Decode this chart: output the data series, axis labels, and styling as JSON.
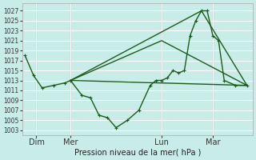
{
  "title": "Pression niveau de la mer( hPa )",
  "bg_color": "#c8ece8",
  "plot_bg": "#c8ece8",
  "grid_color": "#ffffff",
  "line_color": "#1a5c1a",
  "vline_color": "#336633",
  "ylim": [
    1002,
    1028.5
  ],
  "xlim": [
    -0.5,
    40
  ],
  "yticks": [
    1003,
    1005,
    1007,
    1009,
    1011,
    1013,
    1015,
    1017,
    1019,
    1021,
    1023,
    1025,
    1027
  ],
  "day_labels": [
    "Dim",
    "Mer",
    "Lun",
    "Mar"
  ],
  "day_positions": [
    2,
    8,
    24,
    33
  ],
  "line1_x": [
    0,
    1.5,
    3,
    5,
    7,
    8,
    10,
    11.5,
    13,
    14.5,
    16,
    18,
    20,
    22,
    23,
    24,
    25,
    26,
    27,
    28,
    29,
    30,
    31,
    32,
    33,
    34,
    35,
    37,
    39
  ],
  "line1_y": [
    1018,
    1014,
    1011.5,
    1012,
    1012.5,
    1013,
    1010,
    1009.5,
    1006,
    1005.5,
    1003.5,
    1005,
    1007,
    1012,
    1013,
    1013,
    1013.5,
    1015,
    1014.5,
    1015,
    1022,
    1025,
    1027,
    1027,
    1022,
    1021,
    1013,
    1012,
    1012
  ],
  "line2_x": [
    8,
    39
  ],
  "line2_y": [
    1013,
    1012
  ],
  "line3_x": [
    8,
    31,
    39
  ],
  "line3_y": [
    1013,
    1027,
    1012
  ],
  "line4_x": [
    8,
    24,
    39
  ],
  "line4_y": [
    1013,
    1021,
    1012
  ],
  "ylabel_fontsize": 5.5,
  "xlabel_fontsize": 7,
  "tick_fontsize": 5.5,
  "lw": 1.0,
  "ms": 3
}
